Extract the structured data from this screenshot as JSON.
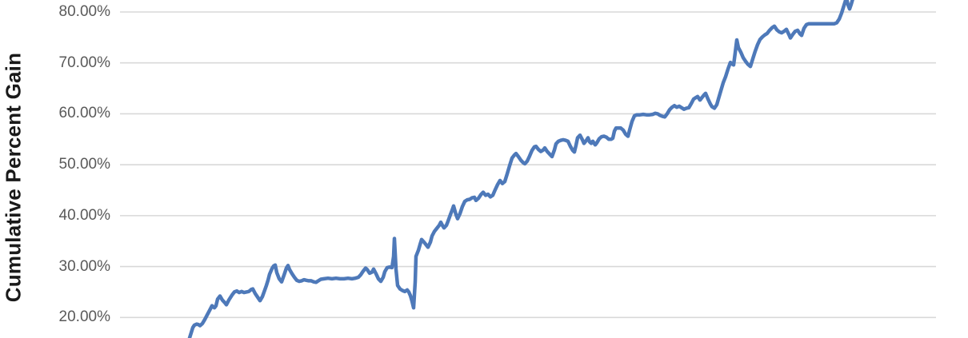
{
  "chart_data": {
    "type": "line",
    "title": "",
    "ylabel": "Cumulative Percent Gain",
    "x_axis": "not visible (chart cropped below 20% gridline; x tick labels and series beyond frame are cut off)",
    "x_unit": "px position in frame (x-axis labels not visible)",
    "y_unit": "percent",
    "ylim_visible": [
      15.7,
      82.4
    ],
    "grid": true,
    "legend_position": "none",
    "yticks": [
      {
        "label": "80.00%",
        "value": 80
      },
      {
        "label": "70.00%",
        "value": 70
      },
      {
        "label": "60.00%",
        "value": 60
      },
      {
        "label": "50.00%",
        "value": 50
      },
      {
        "label": "40.00%",
        "value": 40
      },
      {
        "label": "30.00%",
        "value": 30
      },
      {
        "label": "20.00%",
        "value": 20
      }
    ],
    "colors": {
      "line": "#4E79B9",
      "gridline": "#D8D8D8",
      "tick_label": "#595959",
      "axis_title": "#1a1a1a",
      "background": "#ffffff"
    },
    "series": [
      {
        "name": "cumulative-percent-gain",
        "points": [
          [
            237,
            16.0
          ],
          [
            239,
            17.0
          ],
          [
            241,
            18.0
          ],
          [
            243,
            18.5
          ],
          [
            246,
            18.7
          ],
          [
            248,
            18.6
          ],
          [
            250,
            18.4
          ],
          [
            253,
            18.8
          ],
          [
            256,
            19.6
          ],
          [
            259,
            20.5
          ],
          [
            262,
            21.4
          ],
          [
            265,
            22.3
          ],
          [
            268,
            21.9
          ],
          [
            270,
            22.3
          ],
          [
            272,
            23.6
          ],
          [
            275,
            24.2
          ],
          [
            278,
            23.4
          ],
          [
            281,
            22.9
          ],
          [
            283,
            22.5
          ],
          [
            286,
            23.4
          ],
          [
            290,
            24.4
          ],
          [
            293,
            25.0
          ],
          [
            296,
            25.2
          ],
          [
            299,
            24.9
          ],
          [
            302,
            25.1
          ],
          [
            305,
            24.9
          ],
          [
            308,
            25.0
          ],
          [
            311,
            25.1
          ],
          [
            314,
            25.5
          ],
          [
            316,
            25.6
          ],
          [
            319,
            24.7
          ],
          [
            322,
            24.0
          ],
          [
            325,
            23.3
          ],
          [
            328,
            24.1
          ],
          [
            331,
            25.4
          ],
          [
            333,
            26.3
          ],
          [
            335,
            27.3
          ],
          [
            337,
            28.5
          ],
          [
            340,
            29.6
          ],
          [
            342,
            30.1
          ],
          [
            344,
            30.3
          ],
          [
            346,
            28.8
          ],
          [
            349,
            27.6
          ],
          [
            352,
            27.0
          ],
          [
            355,
            28.3
          ],
          [
            358,
            29.7
          ],
          [
            360,
            30.2
          ],
          [
            362,
            29.4
          ],
          [
            365,
            28.6
          ],
          [
            368,
            27.9
          ],
          [
            371,
            27.3
          ],
          [
            374,
            27.1
          ],
          [
            377,
            27.2
          ],
          [
            380,
            27.4
          ],
          [
            383,
            27.3
          ],
          [
            386,
            27.2
          ],
          [
            389,
            27.2
          ],
          [
            392,
            27.0
          ],
          [
            395,
            26.9
          ],
          [
            398,
            27.2
          ],
          [
            401,
            27.5
          ],
          [
            405,
            27.6
          ],
          [
            410,
            27.7
          ],
          [
            415,
            27.6
          ],
          [
            420,
            27.7
          ],
          [
            425,
            27.6
          ],
          [
            430,
            27.6
          ],
          [
            435,
            27.7
          ],
          [
            440,
            27.6
          ],
          [
            444,
            27.7
          ],
          [
            448,
            27.9
          ],
          [
            451,
            28.4
          ],
          [
            454,
            29.1
          ],
          [
            457,
            29.7
          ],
          [
            459,
            29.4
          ],
          [
            462,
            28.7
          ],
          [
            465,
            28.9
          ],
          [
            467,
            29.5
          ],
          [
            470,
            28.6
          ],
          [
            473,
            27.6
          ],
          [
            476,
            27.1
          ],
          [
            479,
            27.9
          ],
          [
            481,
            29.0
          ],
          [
            484,
            29.8
          ],
          [
            487,
            29.9
          ],
          [
            490,
            29.8
          ],
          [
            492,
            32.0
          ],
          [
            493,
            35.5
          ],
          [
            495,
            29.5
          ],
          [
            497,
            26.3
          ],
          [
            500,
            25.6
          ],
          [
            503,
            25.3
          ],
          [
            506,
            25.1
          ],
          [
            509,
            25.4
          ],
          [
            511,
            25.0
          ],
          [
            513,
            24.3
          ],
          [
            515,
            23.2
          ],
          [
            517,
            21.9
          ],
          [
            519,
            27.0
          ],
          [
            520,
            32.0
          ],
          [
            523,
            33.2
          ],
          [
            525,
            34.3
          ],
          [
            527,
            35.3
          ],
          [
            530,
            34.8
          ],
          [
            533,
            34.2
          ],
          [
            535,
            33.8
          ],
          [
            538,
            34.8
          ],
          [
            540,
            36.0
          ],
          [
            543,
            36.9
          ],
          [
            546,
            37.5
          ],
          [
            549,
            38.1
          ],
          [
            551,
            38.7
          ],
          [
            553,
            38.1
          ],
          [
            555,
            37.6
          ],
          [
            558,
            38.1
          ],
          [
            560,
            38.9
          ],
          [
            563,
            40.2
          ],
          [
            565,
            41.0
          ],
          [
            567,
            41.9
          ],
          [
            570,
            40.2
          ],
          [
            572,
            39.4
          ],
          [
            575,
            40.4
          ],
          [
            578,
            41.8
          ],
          [
            581,
            42.8
          ],
          [
            584,
            43.1
          ],
          [
            587,
            43.2
          ],
          [
            590,
            43.5
          ],
          [
            593,
            43.6
          ],
          [
            595,
            43.0
          ],
          [
            598,
            43.4
          ],
          [
            601,
            44.1
          ],
          [
            604,
            44.6
          ],
          [
            607,
            44.0
          ],
          [
            610,
            44.2
          ],
          [
            613,
            43.7
          ],
          [
            616,
            44.0
          ],
          [
            619,
            45.1
          ],
          [
            622,
            46.1
          ],
          [
            625,
            46.9
          ],
          [
            628,
            46.3
          ],
          [
            631,
            46.7
          ],
          [
            634,
            48.2
          ],
          [
            637,
            49.8
          ],
          [
            640,
            51.3
          ],
          [
            643,
            51.9
          ],
          [
            645,
            52.2
          ],
          [
            648,
            51.6
          ],
          [
            651,
            50.9
          ],
          [
            654,
            50.4
          ],
          [
            656,
            50.2
          ],
          [
            659,
            50.7
          ],
          [
            662,
            51.7
          ],
          [
            665,
            52.8
          ],
          [
            668,
            53.5
          ],
          [
            670,
            53.6
          ],
          [
            673,
            53.0
          ],
          [
            676,
            52.6
          ],
          [
            679,
            52.9
          ],
          [
            681,
            53.3
          ],
          [
            684,
            52.6
          ],
          [
            687,
            52.1
          ],
          [
            690,
            51.6
          ],
          [
            693,
            52.9
          ],
          [
            695,
            54.1
          ],
          [
            698,
            54.6
          ],
          [
            701,
            54.8
          ],
          [
            704,
            54.9
          ],
          [
            707,
            54.8
          ],
          [
            710,
            54.6
          ],
          [
            713,
            53.6
          ],
          [
            716,
            52.8
          ],
          [
            718,
            52.5
          ],
          [
            720,
            53.8
          ],
          [
            722,
            55.3
          ],
          [
            725,
            55.8
          ],
          [
            728,
            54.9
          ],
          [
            730,
            54.2
          ],
          [
            733,
            54.8
          ],
          [
            735,
            55.3
          ],
          [
            737,
            54.5
          ],
          [
            739,
            54.2
          ],
          [
            741,
            54.6
          ],
          [
            744,
            53.9
          ],
          [
            746,
            54.3
          ],
          [
            749,
            55.1
          ],
          [
            752,
            55.5
          ],
          [
            755,
            55.6
          ],
          [
            758,
            55.4
          ],
          [
            761,
            55.0
          ],
          [
            764,
            55.0
          ],
          [
            766,
            55.2
          ],
          [
            768,
            56.6
          ],
          [
            770,
            57.2
          ],
          [
            773,
            57.2
          ],
          [
            776,
            57.2
          ],
          [
            779,
            56.8
          ],
          [
            782,
            56.0
          ],
          [
            785,
            55.6
          ],
          [
            787,
            56.8
          ],
          [
            790,
            58.5
          ],
          [
            793,
            59.6
          ],
          [
            796,
            59.8
          ],
          [
            800,
            59.8
          ],
          [
            804,
            59.9
          ],
          [
            808,
            59.8
          ],
          [
            812,
            59.8
          ],
          [
            816,
            59.9
          ],
          [
            819,
            60.1
          ],
          [
            822,
            60.0
          ],
          [
            825,
            59.7
          ],
          [
            828,
            59.5
          ],
          [
            831,
            59.4
          ],
          [
            834,
            60.0
          ],
          [
            837,
            60.8
          ],
          [
            840,
            61.3
          ],
          [
            843,
            61.6
          ],
          [
            846,
            61.3
          ],
          [
            849,
            61.5
          ],
          [
            852,
            61.2
          ],
          [
            855,
            60.9
          ],
          [
            858,
            61.1
          ],
          [
            861,
            61.2
          ],
          [
            864,
            62.0
          ],
          [
            867,
            62.9
          ],
          [
            870,
            63.2
          ],
          [
            872,
            63.4
          ],
          [
            875,
            62.7
          ],
          [
            878,
            63.3
          ],
          [
            880,
            63.7
          ],
          [
            882,
            64.0
          ],
          [
            885,
            62.9
          ],
          [
            888,
            61.9
          ],
          [
            890,
            61.4
          ],
          [
            893,
            61.1
          ],
          [
            896,
            61.8
          ],
          [
            898,
            62.9
          ],
          [
            901,
            64.5
          ],
          [
            904,
            66.1
          ],
          [
            907,
            67.3
          ],
          [
            910,
            68.8
          ],
          [
            913,
            70.1
          ],
          [
            915,
            69.8
          ],
          [
            917,
            69.6
          ],
          [
            919,
            72.0
          ],
          [
            921,
            74.5
          ],
          [
            923,
            73.0
          ],
          [
            926,
            72.1
          ],
          [
            929,
            71.0
          ],
          [
            932,
            70.3
          ],
          [
            935,
            69.7
          ],
          [
            938,
            69.3
          ],
          [
            941,
            70.8
          ],
          [
            944,
            72.3
          ],
          [
            947,
            73.6
          ],
          [
            950,
            74.6
          ],
          [
            953,
            75.1
          ],
          [
            956,
            75.5
          ],
          [
            959,
            75.8
          ],
          [
            962,
            76.4
          ],
          [
            965,
            76.9
          ],
          [
            968,
            77.2
          ],
          [
            971,
            76.5
          ],
          [
            974,
            76.1
          ],
          [
            977,
            75.9
          ],
          [
            980,
            76.2
          ],
          [
            983,
            76.6
          ],
          [
            986,
            75.6
          ],
          [
            988,
            74.9
          ],
          [
            991,
            75.6
          ],
          [
            994,
            76.2
          ],
          [
            997,
            76.4
          ],
          [
            1000,
            75.7
          ],
          [
            1002,
            75.4
          ],
          [
            1005,
            76.8
          ],
          [
            1008,
            77.5
          ],
          [
            1011,
            77.7
          ],
          [
            1015,
            77.7
          ],
          [
            1019,
            77.7
          ],
          [
            1023,
            77.7
          ],
          [
            1027,
            77.7
          ],
          [
            1031,
            77.7
          ],
          [
            1035,
            77.7
          ],
          [
            1039,
            77.7
          ],
          [
            1043,
            77.7
          ],
          [
            1046,
            77.9
          ],
          [
            1049,
            78.6
          ],
          [
            1052,
            79.8
          ],
          [
            1054,
            80.8
          ],
          [
            1056,
            81.8
          ],
          [
            1058,
            82.8
          ],
          [
            1060,
            81.4
          ],
          [
            1062,
            80.6
          ],
          [
            1064,
            81.5
          ],
          [
            1066,
            82.6
          ],
          [
            1068,
            83.6
          ]
        ]
      }
    ]
  }
}
